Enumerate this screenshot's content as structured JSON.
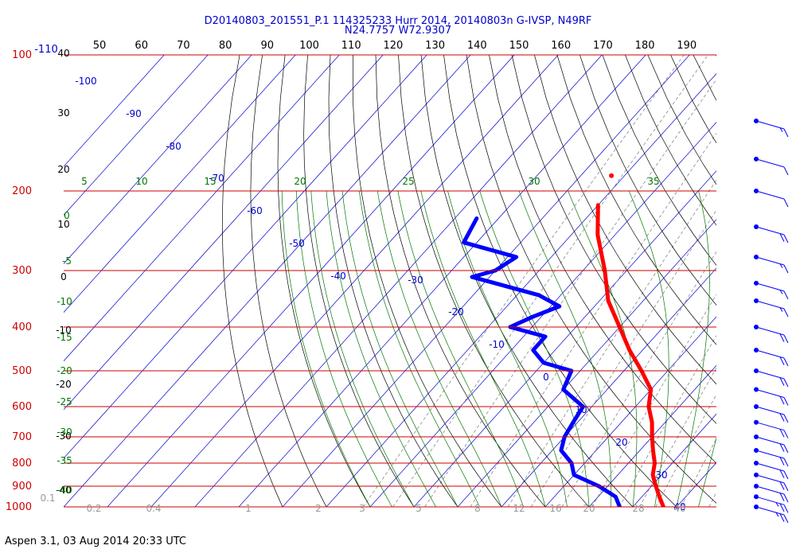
{
  "header": {
    "line1": "D20140803_201551_P.1 114325233 Hurr 2014, 20140803n G-IVSP, N49RF",
    "line2": "N24.7757 W72.9307"
  },
  "footer": "Aspen 3.1, 03 Aug 2014  20:33 UTC",
  "colors": {
    "temperature": "#ff0000",
    "dewpoint": "#0000ff",
    "isobar": "#cc0000",
    "isotherm": "#0000cc",
    "dry_adiabat": "#000000",
    "moist_adiabat": "#007700",
    "mixing_ratio": "#888888",
    "wind_barb": "#0000ff"
  },
  "chart_data": {
    "type": "skew-t",
    "pressure_levels": [
      "100",
      "200",
      "300",
      "400",
      "500",
      "600",
      "700",
      "800",
      "900",
      "1000"
    ],
    "isotherm_top_labels": [
      "-110",
      "50",
      "60",
      "70",
      "80",
      "90",
      "100",
      "110",
      "120",
      "130",
      "140",
      "150",
      "160",
      "170",
      "180",
      "190"
    ],
    "isotherm_labels": [
      "-100",
      "-90",
      "-80",
      "-70",
      "-60",
      "-50",
      "-40",
      "-30",
      "-20",
      "-10",
      "0",
      "10",
      "20",
      "30",
      "40"
    ],
    "dry_adiabat_labels": [
      "40",
      "30",
      "20",
      "10",
      "0",
      "-10",
      "-20",
      "-30",
      "-40"
    ],
    "moist_adiabat_labels": [
      "5",
      "10",
      "15",
      "20",
      "25",
      "30",
      "35",
      "0",
      "-5",
      "-10",
      "-15",
      "-20",
      "-25",
      "-30",
      "-35",
      "-40"
    ],
    "mixing_ratio_labels": [
      "0.1",
      "0.2",
      "0.4",
      "1",
      "2",
      "3",
      "5",
      "8",
      "12",
      "16",
      "20",
      "28",
      "40"
    ],
    "series": [
      {
        "name": "",
        "kind": "temperature",
        "points": [
          [
            215,
            -50
          ],
          [
            250,
            -44
          ],
          [
            300,
            -35
          ],
          [
            350,
            -28
          ],
          [
            400,
            -20
          ],
          [
            450,
            -13
          ],
          [
            500,
            -6
          ],
          [
            550,
            0
          ],
          [
            600,
            3
          ],
          [
            650,
            7
          ],
          [
            700,
            10
          ],
          [
            750,
            13
          ],
          [
            800,
            16
          ],
          [
            850,
            18
          ],
          [
            900,
            21
          ],
          [
            950,
            24
          ],
          [
            1000,
            27
          ]
        ]
      },
      {
        "name": "",
        "kind": "dewpoint",
        "points": [
          [
            230,
            -75
          ],
          [
            260,
            -73
          ],
          [
            280,
            -58
          ],
          [
            300,
            -60
          ],
          [
            310,
            -64
          ],
          [
            340,
            -45
          ],
          [
            360,
            -38
          ],
          [
            380,
            -42
          ],
          [
            400,
            -45
          ],
          [
            420,
            -35
          ],
          [
            450,
            -35
          ],
          [
            480,
            -30
          ],
          [
            500,
            -22
          ],
          [
            550,
            -20
          ],
          [
            600,
            -12
          ],
          [
            650,
            -11
          ],
          [
            700,
            -10
          ],
          [
            750,
            -8
          ],
          [
            800,
            -3
          ],
          [
            850,
            0
          ],
          [
            900,
            8
          ],
          [
            950,
            14
          ],
          [
            1000,
            17
          ]
        ]
      }
    ],
    "wind_barbs": [
      {
        "pressure": 140,
        "speed_kt": 15
      },
      {
        "pressure": 170,
        "speed_kt": 10
      },
      {
        "pressure": 200,
        "speed_kt": 10
      },
      {
        "pressure": 240,
        "speed_kt": 20
      },
      {
        "pressure": 280,
        "speed_kt": 15
      },
      {
        "pressure": 320,
        "speed_kt": 15
      },
      {
        "pressure": 350,
        "speed_kt": 15
      },
      {
        "pressure": 400,
        "speed_kt": 20
      },
      {
        "pressure": 450,
        "speed_kt": 20
      },
      {
        "pressure": 500,
        "speed_kt": 20
      },
      {
        "pressure": 550,
        "speed_kt": 20
      },
      {
        "pressure": 600,
        "speed_kt": 20
      },
      {
        "pressure": 650,
        "speed_kt": 20
      },
      {
        "pressure": 700,
        "speed_kt": 20
      },
      {
        "pressure": 750,
        "speed_kt": 20
      },
      {
        "pressure": 800,
        "speed_kt": 20
      },
      {
        "pressure": 850,
        "speed_kt": 20
      },
      {
        "pressure": 900,
        "speed_kt": 20
      },
      {
        "pressure": 950,
        "speed_kt": 25
      },
      {
        "pressure": 1000,
        "speed_kt": 25
      }
    ]
  }
}
